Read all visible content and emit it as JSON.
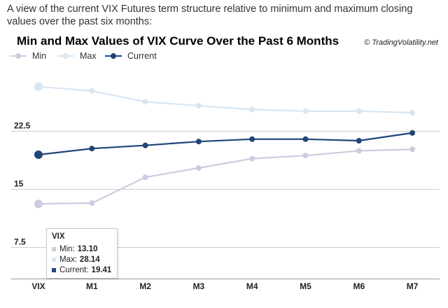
{
  "intro": "A view of the current VIX Futures term structure relative to minimum and maximum closing values over the past six months:",
  "credit": "© TradingVolatility.net",
  "colors": {
    "min": "#cfcbe0",
    "max": "#d6e6f3",
    "current": "#1f4579",
    "grid": "#cccccc",
    "axis": "#999999"
  },
  "tooltip": {
    "title": "VIX",
    "min_label": "Min:",
    "min_value": "13.10",
    "max_label": "Max:",
    "max_value": "28.14",
    "current_label": "Current:",
    "current_value": "19.41"
  },
  "chart_data": {
    "type": "line",
    "title": "Min and Max Values of VIX Curve Over the Past 6 Months",
    "xlabel": "",
    "ylabel": "",
    "categories": [
      "VIX",
      "M1",
      "M2",
      "M3",
      "M4",
      "M5",
      "M6",
      "M7"
    ],
    "yticks": [
      "7.5",
      "15",
      "22.5"
    ],
    "ylim": [
      3.5,
      31
    ],
    "grid": true,
    "legend_position": "top-left",
    "series": [
      {
        "name": "Min",
        "values": [
          13.1,
          13.2,
          16.5,
          17.7,
          18.9,
          19.3,
          19.9,
          20.1
        ]
      },
      {
        "name": "Max",
        "values": [
          28.14,
          27.6,
          26.2,
          25.7,
          25.2,
          25.0,
          25.0,
          24.8
        ]
      },
      {
        "name": "Current",
        "values": [
          19.41,
          20.2,
          20.6,
          21.1,
          21.4,
          21.4,
          21.2,
          22.2
        ]
      }
    ]
  }
}
